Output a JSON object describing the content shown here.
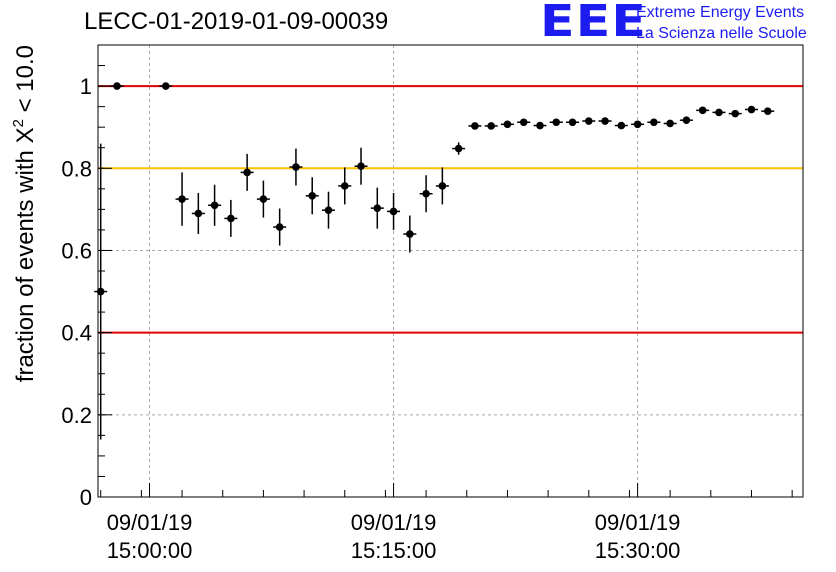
{
  "title": "LECC-01-2019-01-09-00039",
  "logo": {
    "mark": "EEE",
    "line1": "Extreme Energy Events",
    "line2": "La Scienza nelle Scuole",
    "color": "#1c1cf0"
  },
  "chart_data": {
    "type": "scatter",
    "title": "LECC-01-2019-01-09-00039",
    "ylabel_prefix": "fraction of events with ",
    "ylabel_symbol": "X",
    "ylabel_sup": "2",
    "ylabel_suffix": " < 10.0",
    "xlabel": "",
    "xlim": [
      "14:56:50",
      "15:40:10"
    ],
    "ylim": [
      0,
      1.1
    ],
    "x_ticks": [
      {
        "time": "15:00:00",
        "date": "09/01/19",
        "time_label": "15:00:00"
      },
      {
        "time": "15:15:00",
        "date": "09/01/19",
        "time_label": "15:15:00"
      },
      {
        "time": "15:30:00",
        "date": "09/01/19",
        "time_label": "15:30:00"
      }
    ],
    "y_ticks": [
      0,
      0.2,
      0.4,
      0.6,
      0.8,
      1
    ],
    "y_tick_labels": [
      "0",
      "0.2",
      "0.4",
      "0.6",
      "0.8",
      "1"
    ],
    "grid": true,
    "reference_lines": [
      {
        "y": 1.0,
        "color": "#e00000"
      },
      {
        "y": 0.8,
        "color": "#ffc000"
      },
      {
        "y": 0.4,
        "color": "#e00000"
      }
    ],
    "series": [
      {
        "marker_color": "#000000",
        "points": [
          {
            "x": "14:57:00",
            "y": 0.5,
            "yerr": 0.36
          },
          {
            "x": "14:58:00",
            "y": 1.0,
            "yerr": 0
          },
          {
            "x": "15:01:00",
            "y": 1.0,
            "yerr": 0
          },
          {
            "x": "15:02:00",
            "y": 0.725,
            "yerr": 0.065
          },
          {
            "x": "15:03:00",
            "y": 0.69,
            "yerr": 0.05
          },
          {
            "x": "15:04:00",
            "y": 0.71,
            "yerr": 0.05
          },
          {
            "x": "15:05:00",
            "y": 0.678,
            "yerr": 0.045
          },
          {
            "x": "15:06:00",
            "y": 0.79,
            "yerr": 0.045
          },
          {
            "x": "15:07:00",
            "y": 0.725,
            "yerr": 0.045
          },
          {
            "x": "15:08:00",
            "y": 0.657,
            "yerr": 0.045
          },
          {
            "x": "15:09:00",
            "y": 0.803,
            "yerr": 0.045
          },
          {
            "x": "15:10:00",
            "y": 0.733,
            "yerr": 0.045
          },
          {
            "x": "15:11:00",
            "y": 0.698,
            "yerr": 0.045
          },
          {
            "x": "15:12:00",
            "y": 0.757,
            "yerr": 0.045
          },
          {
            "x": "15:13:00",
            "y": 0.805,
            "yerr": 0.045
          },
          {
            "x": "15:14:00",
            "y": 0.703,
            "yerr": 0.05
          },
          {
            "x": "15:15:00",
            "y": 0.695,
            "yerr": 0.045
          },
          {
            "x": "15:16:00",
            "y": 0.64,
            "yerr": 0.045
          },
          {
            "x": "15:17:00",
            "y": 0.738,
            "yerr": 0.045
          },
          {
            "x": "15:18:00",
            "y": 0.757,
            "yerr": 0.045
          },
          {
            "x": "15:19:00",
            "y": 0.848,
            "yerr": 0.015
          },
          {
            "x": "15:20:00",
            "y": 0.903,
            "yerr": 0.005
          },
          {
            "x": "15:21:00",
            "y": 0.903,
            "yerr": 0.005
          },
          {
            "x": "15:22:00",
            "y": 0.907,
            "yerr": 0.005
          },
          {
            "x": "15:23:00",
            "y": 0.912,
            "yerr": 0.005
          },
          {
            "x": "15:24:00",
            "y": 0.904,
            "yerr": 0.005
          },
          {
            "x": "15:25:00",
            "y": 0.912,
            "yerr": 0.005
          },
          {
            "x": "15:26:00",
            "y": 0.912,
            "yerr": 0.005
          },
          {
            "x": "15:27:00",
            "y": 0.915,
            "yerr": 0.005
          },
          {
            "x": "15:28:00",
            "y": 0.915,
            "yerr": 0.005
          },
          {
            "x": "15:29:00",
            "y": 0.904,
            "yerr": 0.005
          },
          {
            "x": "15:30:00",
            "y": 0.907,
            "yerr": 0.005
          },
          {
            "x": "15:31:00",
            "y": 0.912,
            "yerr": 0.005
          },
          {
            "x": "15:32:00",
            "y": 0.909,
            "yerr": 0.005
          },
          {
            "x": "15:33:00",
            "y": 0.917,
            "yerr": 0.005
          },
          {
            "x": "15:34:00",
            "y": 0.941,
            "yerr": 0.005
          },
          {
            "x": "15:35:00",
            "y": 0.936,
            "yerr": 0.005
          },
          {
            "x": "15:36:00",
            "y": 0.933,
            "yerr": 0.005
          },
          {
            "x": "15:37:00",
            "y": 0.943,
            "yerr": 0.005
          },
          {
            "x": "15:38:00",
            "y": 0.939,
            "yerr": 0.005
          }
        ]
      }
    ]
  }
}
